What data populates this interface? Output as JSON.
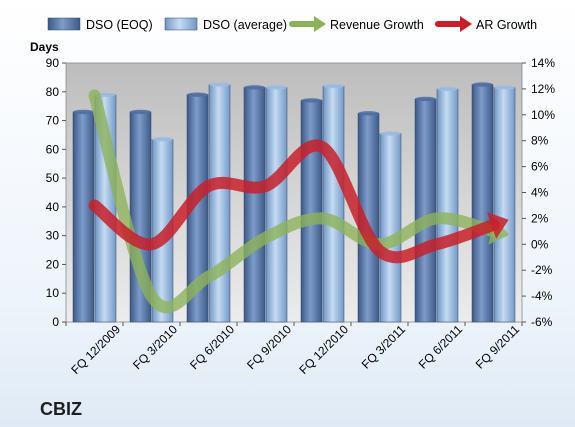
{
  "chart_data": {
    "type": "bar",
    "title": "CBIZ",
    "categories": [
      "FQ 12/2009",
      "FQ 3/2010",
      "FQ 6/2010",
      "FQ 9/2010",
      "FQ 12/2010",
      "FQ 3/2011",
      "FQ 6/2011",
      "FQ 9/2011"
    ],
    "ylabel": "Days",
    "ylim": [
      0,
      90
    ],
    "yticks": [
      0,
      10,
      20,
      30,
      40,
      50,
      60,
      70,
      80,
      90
    ],
    "y2lim": [
      -6,
      14
    ],
    "y2ticks": [
      "-6%",
      "-4%",
      "-2%",
      "0%",
      "2%",
      "4%",
      "6%",
      "8%",
      "10%",
      "12%",
      "14%"
    ],
    "legend_position": "top",
    "grid": false,
    "series": [
      {
        "name": "DSO (EOQ)",
        "kind": "bar",
        "color": "#4f6fa3",
        "values": [
          73,
          73,
          79,
          81.5,
          77,
          72.5,
          77.5,
          82.5
        ]
      },
      {
        "name": "DSO (average)",
        "kind": "bar",
        "color": "#9cbce0",
        "values": [
          79,
          63.5,
          82.5,
          81.5,
          82,
          65.5,
          81,
          81.5
        ]
      },
      {
        "name": "Revenue Growth",
        "kind": "line",
        "axis": "secondary",
        "color": "#8db35a",
        "values": [
          11.5,
          -4,
          -2.5,
          0.5,
          2,
          0,
          2,
          1
        ]
      },
      {
        "name": "AR Growth",
        "kind": "line",
        "axis": "secondary",
        "color": "#c8202a",
        "values": [
          3,
          0,
          4.5,
          4.5,
          7.5,
          -0.5,
          0,
          1.5
        ]
      }
    ]
  }
}
